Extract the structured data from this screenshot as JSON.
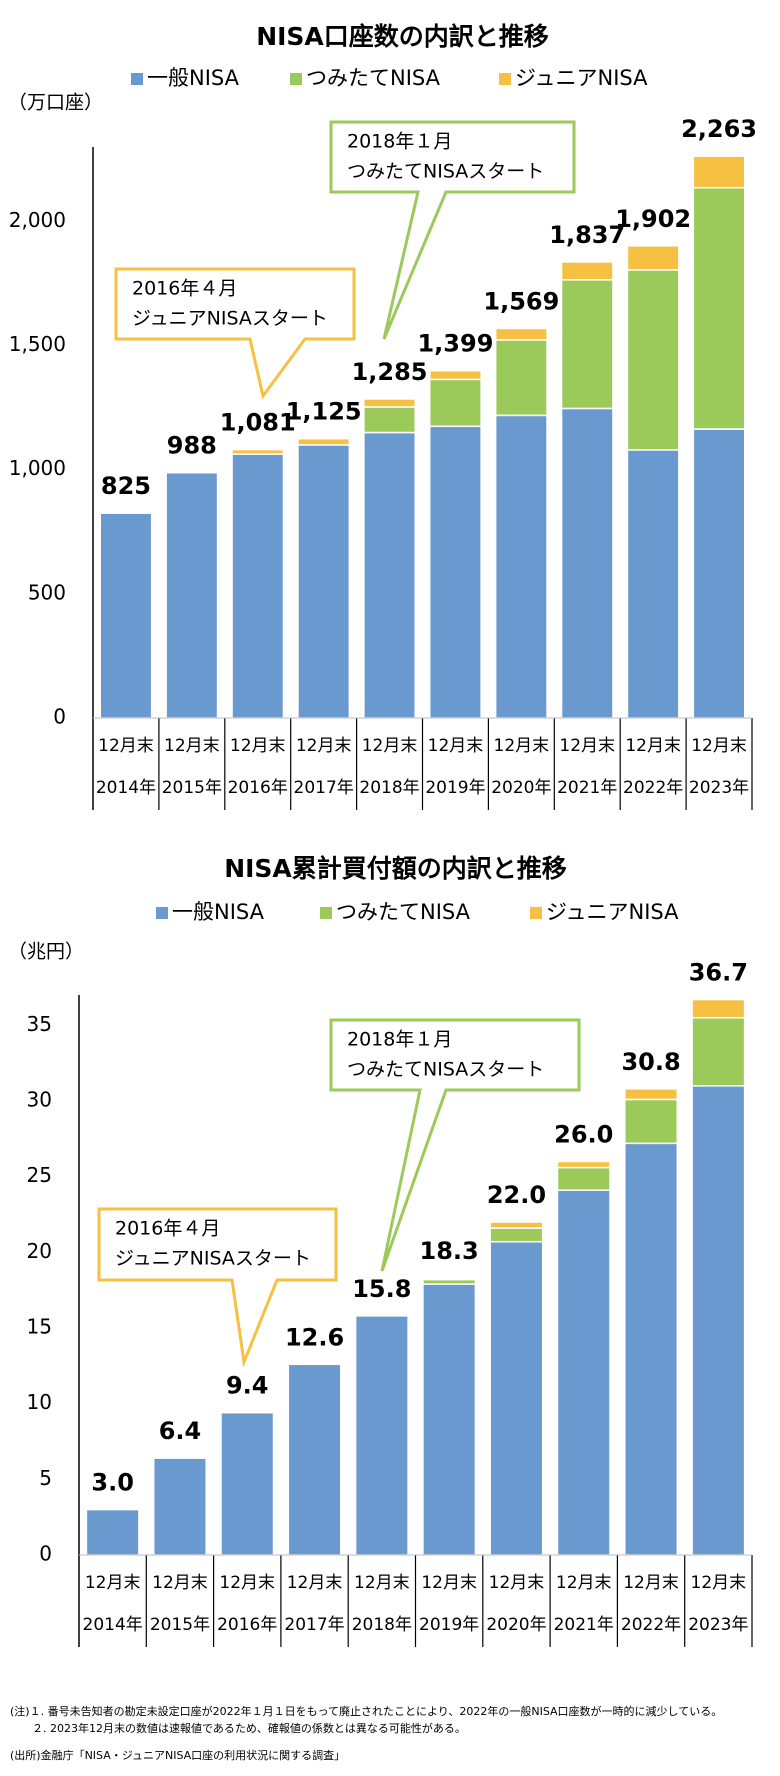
{
  "chart_data": [
    {
      "type": "bar",
      "stacked": true,
      "title": "NISA口座数の内訳と推移",
      "y_label": "（万口座）",
      "categories": [
        [
          "12月末",
          "2014年"
        ],
        [
          "12月末",
          "2015年"
        ],
        [
          "12月末",
          "2016年"
        ],
        [
          "12月末",
          "2017年"
        ],
        [
          "12月末",
          "2018年"
        ],
        [
          "12月末",
          "2019年"
        ],
        [
          "12月末",
          "2020年"
        ],
        [
          "12月末",
          "2021年"
        ],
        [
          "12月末",
          "2022年"
        ],
        [
          "12月末",
          "2023年"
        ]
      ],
      "series": [
        {
          "name": "一般NISA",
          "color": "#6a99d0",
          "values": [
            825,
            988,
            1063,
            1100,
            1150,
            1175,
            1219,
            1247,
            1080,
            1164
          ]
        },
        {
          "name": "つみたてNISA",
          "color": "#9bca5a",
          "values": [
            null,
            null,
            null,
            null,
            103,
            189,
            304,
            518,
            725,
            972
          ]
        },
        {
          "name": "ジュニアNISA",
          "color": "#f6c142",
          "values": [
            null,
            null,
            18,
            25,
            32,
            35,
            46,
            72,
            97,
            127
          ]
        }
      ],
      "totals": [
        825,
        988,
        1081,
        1125,
        1285,
        1399,
        1569,
        1837,
        1902,
        2263
      ],
      "value_labels": [
        "825",
        "988",
        "1,081",
        "1,125",
        "1,285",
        "1,399",
        "1,569",
        "1,837",
        "1,902",
        "2,263"
      ],
      "ylim": [
        0,
        2300
      ],
      "yticks": [
        0,
        500,
        {
          "value": 1000,
          "label": "1,000"
        },
        {
          "value": 1500,
          "label": "1,500"
        },
        {
          "value": 2000,
          "label": "2,000"
        }
      ],
      "grid": false,
      "annotations": [
        {
          "lines": [
            "2016年４月",
            "ジュニアNISAスタート"
          ],
          "color": "#f6c142"
        },
        {
          "lines": [
            "2018年１月",
            "つみたてNISAスタート"
          ],
          "color": "#9bca5a"
        }
      ]
    },
    {
      "type": "bar",
      "stacked": true,
      "title": "NISA累計買付額の内訳と推移",
      "y_label": "（兆円）",
      "categories": [
        [
          "12月末",
          "2014年"
        ],
        [
          "12月末",
          "2015年"
        ],
        [
          "12月末",
          "2016年"
        ],
        [
          "12月末",
          "2017年"
        ],
        [
          "12月末",
          "2018年"
        ],
        [
          "12月末",
          "2019年"
        ],
        [
          "12月末",
          "2020年"
        ],
        [
          "12月末",
          "2021年"
        ],
        [
          "12月末",
          "2022年"
        ],
        [
          "12月末",
          "2023年"
        ]
      ],
      "series": [
        {
          "name": "一般NISA",
          "color": "#6a99d0",
          "values": [
            3.0,
            6.4,
            9.4,
            12.6,
            15.8,
            17.9,
            20.7,
            24.1,
            27.2,
            31.0
          ]
        },
        {
          "name": "つみたてNISA",
          "color": "#9bca5a",
          "values": [
            null,
            null,
            null,
            null,
            null,
            0.3,
            0.9,
            1.5,
            2.9,
            4.5
          ]
        },
        {
          "name": "ジュニアNISA",
          "color": "#f6c142",
          "values": [
            null,
            null,
            null,
            null,
            null,
            0.1,
            0.4,
            0.4,
            0.7,
            1.2
          ]
        }
      ],
      "totals": [
        3.0,
        6.4,
        9.4,
        12.6,
        15.8,
        18.3,
        22.0,
        26.0,
        30.8,
        36.7
      ],
      "value_labels": [
        "3.0",
        "6.4",
        "9.4",
        "12.6",
        "15.8",
        "18.3",
        "22.0",
        "26.0",
        "30.8",
        "36.7"
      ],
      "ylim": [
        0,
        37
      ],
      "yticks": [
        0,
        5,
        10,
        15,
        20,
        25,
        30,
        35
      ],
      "grid": false,
      "annotations": [
        {
          "lines": [
            "2016年４月",
            "ジュニアNISAスタート"
          ],
          "color": "#f6c142"
        },
        {
          "lines": [
            "2018年１月",
            "つみたてNISAスタート"
          ],
          "color": "#9bca5a"
        }
      ]
    }
  ],
  "notes": [
    "(注)１. 番号未告知者の勘定未設定口座が2022年１月１日をもって廃止されたことにより、2022年の一般NISA口座数が一時的に減少している。",
    "２. 2023年12月末の数値は速報値であるため、確報値の係数とは異なる可能性がある。",
    "(出所)金融庁「NISA・ジュニアNISA口座の利用状況に関する調査」"
  ]
}
